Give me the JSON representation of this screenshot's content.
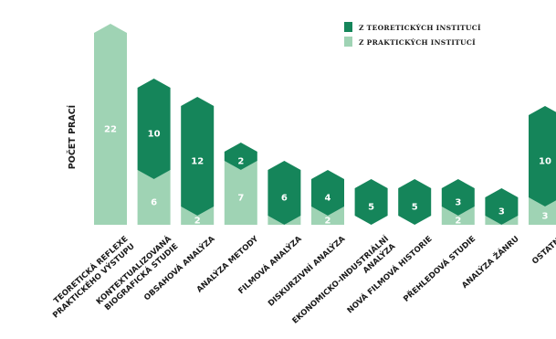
{
  "chart_data": {
    "type": "bar",
    "stacked": true,
    "ylabel": "POČET PRACÍ",
    "legend_position": "top-right",
    "categories": [
      "TEORETICKÁ REFLEXE PRAKTICKÉHO VÝSTUPU",
      "KONTEXTUALIZOVANÁ BIOGRAFICKÁ STUDIE",
      "OBSAHOVÁ ANALÝZA",
      "ANALÝZA METODY",
      "FILMOVÁ ANALÝZA",
      "DISKURZIVNÍ ANALÝZA",
      "EKONOMICKO-INDUSTRIÁLNÍ ANALÝZA",
      "NOVÁ FILMOVÁ HISTORIE",
      "PŘEHLEDOVÁ STUDIE",
      "ANALÝZA ŽÁNRU",
      "OSTATNÍ"
    ],
    "category_lines": [
      [
        "TEORETICKÁ REFLEXE",
        "PRAKTICKÉHO VÝSTUPU"
      ],
      [
        "KONTEXTUALIZOVANÁ",
        "BIOGRAFICKÁ STUDIE"
      ],
      [
        "OBSAHOVÁ ANALÝZA"
      ],
      [
        "ANALÝZA METODY"
      ],
      [
        "FILMOVÁ ANALÝZA"
      ],
      [
        "DISKURZIVNÍ ANALÝZA"
      ],
      [
        "EKONOMICKO-INDUSTRIÁLNÍ",
        "ANALÝZA"
      ],
      [
        "NOVÁ FILMOVÁ HISTORIE"
      ],
      [
        "PŘEHLEDOVÁ STUDIE"
      ],
      [
        "ANALÝZA ŽÁNRU"
      ],
      [
        "OSTATNÍ"
      ]
    ],
    "series": [
      {
        "name": "Z TEORETICKÝCH INSTITUCÍ",
        "color": "#15855a",
        "values": [
          0,
          10,
          12,
          2,
          6,
          4,
          5,
          5,
          3,
          3,
          10
        ]
      },
      {
        "name": "Z PRAKTICKÝCH INSTITUCÍ",
        "color": "#9fd3b4",
        "values": [
          22,
          6,
          2,
          7,
          1,
          2,
          0,
          0,
          2,
          1,
          3
        ]
      }
    ]
  }
}
